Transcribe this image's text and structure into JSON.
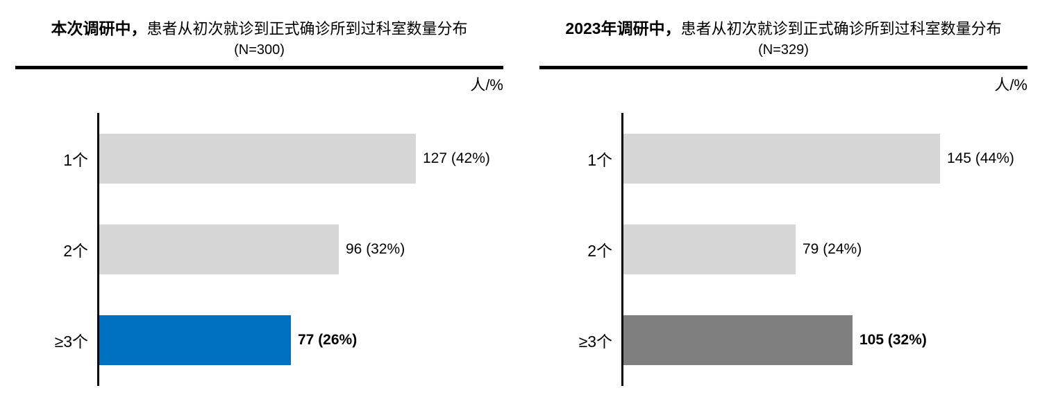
{
  "page": {
    "background": "#ffffff"
  },
  "colors": {
    "bar_default": "#d6d6d6",
    "bar_highlight_current": "#0070c0",
    "bar_highlight_2023": "#7f7f7f",
    "axis_line": "#000000",
    "divider_line": "#000000",
    "text": "#000000"
  },
  "chart_data": [
    {
      "type": "bar",
      "orientation": "horizontal",
      "title": "本次调研中，患者从初次就诊到正式确诊所到过科室数量分布",
      "title_lead": "本次调研中，",
      "title_rest": "患者从初次就诊到正式确诊所到过科室数量分布",
      "subtitle": "(N=300)",
      "n": 300,
      "unit_label": "人/%",
      "categories": [
        "1个",
        "2个",
        "≥3个"
      ],
      "values": [
        127,
        96,
        77
      ],
      "percentages": [
        42,
        32,
        26
      ],
      "data_labels": [
        "127 (42%)",
        "96 (32%)",
        "77 (26%)"
      ],
      "bar_colors": [
        "#d6d6d6",
        "#d6d6d6",
        "#0070c0"
      ],
      "label_bold": [
        false,
        false,
        true
      ],
      "axis": {
        "x_axis_visible": false,
        "y_axis_line": true,
        "gridlines": false,
        "tick_labels": "category only"
      },
      "xlim": [
        0,
        127
      ]
    },
    {
      "type": "bar",
      "orientation": "horizontal",
      "title": "2023年调研中，患者从初次就诊到正式确诊所到过科室数量分布",
      "title_lead": "2023年调研中，",
      "title_rest": "患者从初次就诊到正式确诊所到过科室数量分布",
      "subtitle": "(N=329)",
      "n": 329,
      "unit_label": "人/%",
      "categories": [
        "1个",
        "2个",
        "≥3个"
      ],
      "values": [
        145,
        79,
        105
      ],
      "percentages": [
        44,
        24,
        32
      ],
      "data_labels": [
        "145 (44%)",
        "79 (24%)",
        "105 (32%)"
      ],
      "bar_colors": [
        "#d6d6d6",
        "#d6d6d6",
        "#7f7f7f"
      ],
      "label_bold": [
        false,
        false,
        true
      ],
      "axis": {
        "x_axis_visible": false,
        "y_axis_line": true,
        "gridlines": false,
        "tick_labels": "category only"
      },
      "xlim": [
        0,
        145
      ]
    }
  ]
}
